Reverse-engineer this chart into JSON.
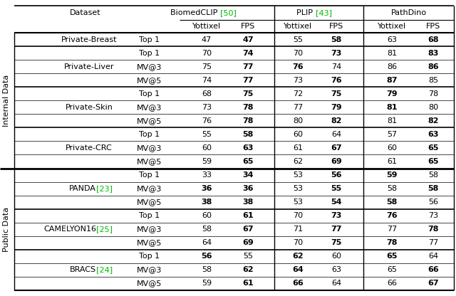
{
  "rows": [
    {
      "group": "internal",
      "dataset": "Private-Breast",
      "metric": "Top 1",
      "biomed_y": "47",
      "biomed_y_bold": false,
      "biomed_fps": "47",
      "biomed_fps_bold": true,
      "plip_y": "55",
      "plip_y_bold": false,
      "plip_fps": "58",
      "plip_fps_bold": true,
      "pd_y": "63",
      "pd_y_bold": false,
      "pd_fps": "68",
      "pd_fps_bold": true
    },
    {
      "group": "internal",
      "dataset": "Private-Liver",
      "metric": "Top 1",
      "biomed_y": "70",
      "biomed_y_bold": false,
      "biomed_fps": "74",
      "biomed_fps_bold": true,
      "plip_y": "70",
      "plip_y_bold": false,
      "plip_fps": "73",
      "plip_fps_bold": true,
      "pd_y": "81",
      "pd_y_bold": false,
      "pd_fps": "83",
      "pd_fps_bold": true
    },
    {
      "group": "internal",
      "dataset": "",
      "metric": "MV@3",
      "biomed_y": "75",
      "biomed_y_bold": false,
      "biomed_fps": "77",
      "biomed_fps_bold": true,
      "plip_y": "76",
      "plip_y_bold": true,
      "plip_fps": "74",
      "plip_fps_bold": false,
      "pd_y": "86",
      "pd_y_bold": false,
      "pd_fps": "86",
      "pd_fps_bold": true
    },
    {
      "group": "internal",
      "dataset": "",
      "metric": "MV@5",
      "biomed_y": "74",
      "biomed_y_bold": false,
      "biomed_fps": "77",
      "biomed_fps_bold": true,
      "plip_y": "73",
      "plip_y_bold": false,
      "plip_fps": "76",
      "plip_fps_bold": true,
      "pd_y": "87",
      "pd_y_bold": true,
      "pd_fps": "85",
      "pd_fps_bold": false
    },
    {
      "group": "internal",
      "dataset": "Private-Skin",
      "metric": "Top 1",
      "biomed_y": "68",
      "biomed_y_bold": false,
      "biomed_fps": "75",
      "biomed_fps_bold": true,
      "plip_y": "72",
      "plip_y_bold": false,
      "plip_fps": "75",
      "plip_fps_bold": true,
      "pd_y": "79",
      "pd_y_bold": true,
      "pd_fps": "78",
      "pd_fps_bold": false
    },
    {
      "group": "internal",
      "dataset": "",
      "metric": "MV@3",
      "biomed_y": "73",
      "biomed_y_bold": false,
      "biomed_fps": "78",
      "biomed_fps_bold": true,
      "plip_y": "77",
      "plip_y_bold": false,
      "plip_fps": "79",
      "plip_fps_bold": true,
      "pd_y": "81",
      "pd_y_bold": true,
      "pd_fps": "80",
      "pd_fps_bold": false
    },
    {
      "group": "internal",
      "dataset": "",
      "metric": "MV@5",
      "biomed_y": "76",
      "biomed_y_bold": false,
      "biomed_fps": "78",
      "biomed_fps_bold": true,
      "plip_y": "80",
      "plip_y_bold": false,
      "plip_fps": "82",
      "plip_fps_bold": true,
      "pd_y": "81",
      "pd_y_bold": false,
      "pd_fps": "82",
      "pd_fps_bold": true
    },
    {
      "group": "internal",
      "dataset": "Private-CRC",
      "metric": "Top 1",
      "biomed_y": "55",
      "biomed_y_bold": false,
      "biomed_fps": "58",
      "biomed_fps_bold": true,
      "plip_y": "60",
      "plip_y_bold": false,
      "plip_fps": "64",
      "plip_fps_bold": false,
      "pd_y": "57",
      "pd_y_bold": false,
      "pd_fps": "63",
      "pd_fps_bold": true
    },
    {
      "group": "internal",
      "dataset": "",
      "metric": "MV@3",
      "biomed_y": "60",
      "biomed_y_bold": false,
      "biomed_fps": "63",
      "biomed_fps_bold": true,
      "plip_y": "61",
      "plip_y_bold": false,
      "plip_fps": "67",
      "plip_fps_bold": true,
      "pd_y": "60",
      "pd_y_bold": false,
      "pd_fps": "65",
      "pd_fps_bold": true
    },
    {
      "group": "internal",
      "dataset": "",
      "metric": "MV@5",
      "biomed_y": "59",
      "biomed_y_bold": false,
      "biomed_fps": "65",
      "biomed_fps_bold": true,
      "plip_y": "62",
      "plip_y_bold": false,
      "plip_fps": "69",
      "plip_fps_bold": true,
      "pd_y": "61",
      "pd_y_bold": false,
      "pd_fps": "65",
      "pd_fps_bold": true
    },
    {
      "group": "public",
      "dataset": "PANDA",
      "dataset_ref": "[23]",
      "metric": "Top 1",
      "biomed_y": "33",
      "biomed_y_bold": false,
      "biomed_fps": "34",
      "biomed_fps_bold": true,
      "plip_y": "53",
      "plip_y_bold": false,
      "plip_fps": "56",
      "plip_fps_bold": true,
      "pd_y": "59",
      "pd_y_bold": true,
      "pd_fps": "58",
      "pd_fps_bold": false
    },
    {
      "group": "public",
      "dataset": "",
      "metric": "MV@3",
      "biomed_y": "36",
      "biomed_y_bold": true,
      "biomed_fps": "36",
      "biomed_fps_bold": true,
      "plip_y": "53",
      "plip_y_bold": false,
      "plip_fps": "55",
      "plip_fps_bold": true,
      "pd_y": "58",
      "pd_y_bold": false,
      "pd_fps": "58",
      "pd_fps_bold": true
    },
    {
      "group": "public",
      "dataset": "",
      "metric": "MV@5",
      "biomed_y": "38",
      "biomed_y_bold": true,
      "biomed_fps": "38",
      "biomed_fps_bold": true,
      "plip_y": "53",
      "plip_y_bold": false,
      "plip_fps": "54",
      "plip_fps_bold": true,
      "pd_y": "58",
      "pd_y_bold": true,
      "pd_fps": "56",
      "pd_fps_bold": false
    },
    {
      "group": "public",
      "dataset": "CAMELYON16",
      "dataset_ref": "[25]",
      "metric": "Top 1",
      "biomed_y": "60",
      "biomed_y_bold": false,
      "biomed_fps": "61",
      "biomed_fps_bold": true,
      "plip_y": "70",
      "plip_y_bold": false,
      "plip_fps": "73",
      "plip_fps_bold": true,
      "pd_y": "76",
      "pd_y_bold": true,
      "pd_fps": "73",
      "pd_fps_bold": false
    },
    {
      "group": "public",
      "dataset": "",
      "metric": "MV@3",
      "biomed_y": "58",
      "biomed_y_bold": false,
      "biomed_fps": "67",
      "biomed_fps_bold": true,
      "plip_y": "71",
      "plip_y_bold": false,
      "plip_fps": "77",
      "plip_fps_bold": true,
      "pd_y": "77",
      "pd_y_bold": false,
      "pd_fps": "78",
      "pd_fps_bold": true
    },
    {
      "group": "public",
      "dataset": "",
      "metric": "MV@5",
      "biomed_y": "64",
      "biomed_y_bold": false,
      "biomed_fps": "69",
      "biomed_fps_bold": true,
      "plip_y": "70",
      "plip_y_bold": false,
      "plip_fps": "75",
      "plip_fps_bold": true,
      "pd_y": "78",
      "pd_y_bold": true,
      "pd_fps": "77",
      "pd_fps_bold": false
    },
    {
      "group": "public",
      "dataset": "BRACS",
      "dataset_ref": "[24]",
      "metric": "Top 1",
      "biomed_y": "56",
      "biomed_y_bold": true,
      "biomed_fps": "55",
      "biomed_fps_bold": false,
      "plip_y": "62",
      "plip_y_bold": true,
      "plip_fps": "60",
      "plip_fps_bold": false,
      "pd_y": "65",
      "pd_y_bold": true,
      "pd_fps": "64",
      "pd_fps_bold": false
    },
    {
      "group": "public",
      "dataset": "",
      "metric": "MV@3",
      "biomed_y": "58",
      "biomed_y_bold": false,
      "biomed_fps": "62",
      "biomed_fps_bold": true,
      "plip_y": "64",
      "plip_y_bold": true,
      "plip_fps": "63",
      "plip_fps_bold": false,
      "pd_y": "65",
      "pd_y_bold": false,
      "pd_fps": "66",
      "pd_fps_bold": true
    },
    {
      "group": "public",
      "dataset": "",
      "metric": "MV@5",
      "biomed_y": "59",
      "biomed_y_bold": false,
      "biomed_fps": "61",
      "biomed_fps_bold": true,
      "plip_y": "66",
      "plip_y_bold": true,
      "plip_fps": "64",
      "plip_fps_bold": false,
      "pd_y": "66",
      "pd_y_bold": false,
      "pd_fps": "67",
      "pd_fps_bold": true
    }
  ],
  "dataset_groups": [
    {
      "rows": [
        0
      ],
      "label": "Private-Breast",
      "ref": ""
    },
    {
      "rows": [
        1,
        2,
        3
      ],
      "label": "Private-Liver",
      "ref": ""
    },
    {
      "rows": [
        4,
        5,
        6
      ],
      "label": "Private-Skin",
      "ref": ""
    },
    {
      "rows": [
        7,
        8,
        9
      ],
      "label": "Private-CRC",
      "ref": ""
    },
    {
      "rows": [
        10,
        11,
        12
      ],
      "label": "PANDA",
      "ref": "[23]"
    },
    {
      "rows": [
        13,
        14,
        15
      ],
      "label": "CAMELYON16",
      "ref": "[25]"
    },
    {
      "rows": [
        16,
        17,
        18
      ],
      "label": "BRACS",
      "ref": "[24]"
    }
  ],
  "ref_color": "#00bb00",
  "fs": 8.0
}
